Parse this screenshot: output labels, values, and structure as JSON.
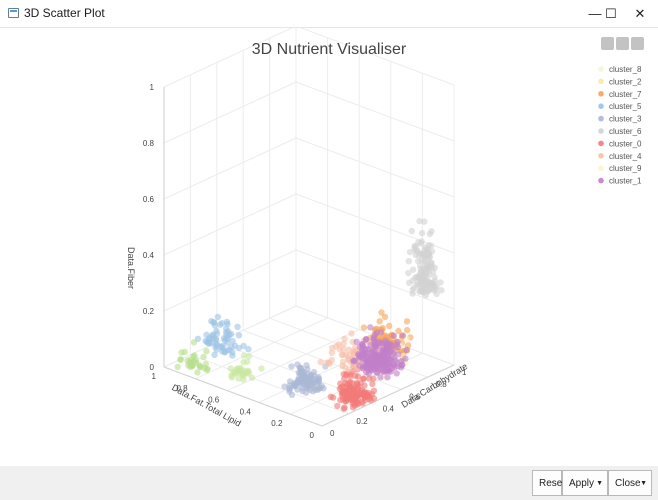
{
  "window": {
    "title": "3D Scatter Plot",
    "controls": {
      "minimize": "—",
      "maximize": "☐",
      "close": "✕"
    }
  },
  "modebar": [
    "toolbar-button-icon",
    "fullscreen-icon",
    "menu-icon"
  ],
  "footer": {
    "reset_label": "Reset",
    "apply_label": "Apply",
    "close_label": "Close",
    "dropdown_glyph": "▼"
  },
  "chart_data": {
    "type": "scatter",
    "title": "3D Nutrient Visualiser",
    "x_axis": {
      "label": "Data.Carbohydrate",
      "range": [
        0,
        1
      ],
      "ticks": [
        "0",
        "0.2",
        "0.4",
        "0.6",
        "0.8",
        "1"
      ]
    },
    "y_axis": {
      "label": "Data.Fat.Total Lipid",
      "range": [
        0,
        1
      ],
      "ticks": [
        "0",
        "0.2",
        "0.4",
        "0.6",
        "0.8",
        "1"
      ]
    },
    "z_axis": {
      "label": "Data.Fiber",
      "range": [
        0,
        1
      ],
      "ticks": [
        "0",
        "0.2",
        "0.4",
        "0.6",
        "0.8",
        "1"
      ]
    },
    "grid": true,
    "legend_position": "top-right",
    "series": [
      {
        "name": "cluster_8",
        "color": "#f5f5d8"
      },
      {
        "name": "cluster_2",
        "color": "#fde8a8"
      },
      {
        "name": "cluster_7",
        "color": "#f5a55a"
      },
      {
        "name": "cluster_5",
        "color": "#9dc3e6"
      },
      {
        "name": "cluster_3",
        "color": "#aab8d4"
      },
      {
        "name": "cluster_6",
        "color": "#d2d2d2"
      },
      {
        "name": "cluster_0",
        "color": "#f27a78"
      },
      {
        "name": "cluster_4",
        "color": "#f7c0a8"
      },
      {
        "name": "cluster_9",
        "color": "#fff4c8"
      },
      {
        "name": "cluster_1",
        "color": "#c27fc9"
      }
    ]
  }
}
